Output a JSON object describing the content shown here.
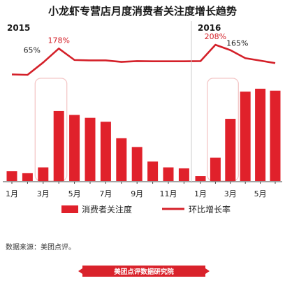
{
  "title": "小龙虾专营店月度消费者关注度增长趋势",
  "colors": {
    "bar": "#e0212b",
    "line": "#d42029",
    "highlight_box": "#f4c7c7",
    "divider": "#cccccc",
    "brand_bg": "#d9222b"
  },
  "chart_data": {
    "type": "bar",
    "groups": [
      {
        "year_label": "2015",
        "start_index": 0,
        "end_index": 11
      },
      {
        "year_label": "2016",
        "start_index": 12,
        "end_index": 17
      }
    ],
    "x_tick_labels": [
      {
        "index": 0,
        "label": "1月"
      },
      {
        "index": 2,
        "label": "3月"
      },
      {
        "index": 4,
        "label": "5月"
      },
      {
        "index": 6,
        "label": "7月"
      },
      {
        "index": 8,
        "label": "9月"
      },
      {
        "index": 10,
        "label": "11月"
      },
      {
        "index": 12,
        "label": "1月"
      },
      {
        "index": 14,
        "label": "3月"
      },
      {
        "index": 16,
        "label": "5月"
      }
    ],
    "series": [
      {
        "name": "消费者关注度",
        "type": "bar",
        "values": [
          10,
          8,
          14,
          72,
          68,
          65,
          61,
          44,
          35,
          20,
          14,
          13,
          5,
          24,
          64,
          92,
          95,
          93
        ]
      },
      {
        "name": "环比增长率",
        "type": "line",
        "values": [
          -32,
          -35,
          65,
          178,
          85,
          82,
          82,
          70,
          76,
          75,
          75,
          75,
          76,
          208,
          165,
          100,
          80,
          60
        ]
      }
    ],
    "annotations": [
      {
        "series": "环比增长率",
        "index": 2,
        "text": "65%",
        "color": "#222222"
      },
      {
        "series": "环比增长率",
        "index": 3,
        "text": "178%",
        "color": "#d42029"
      },
      {
        "series": "环比增长率",
        "index": 13,
        "text": "208%",
        "color": "#d42029"
      },
      {
        "series": "环比增长率",
        "index": 14,
        "text": "165%",
        "color": "#222222"
      }
    ],
    "highlight_ranges": [
      [
        2,
        3
      ],
      [
        13,
        14
      ]
    ],
    "legend_placement": "bottom"
  },
  "source_text": "数据来源：美团点评。",
  "brand_text": "美团点评数据研究院"
}
